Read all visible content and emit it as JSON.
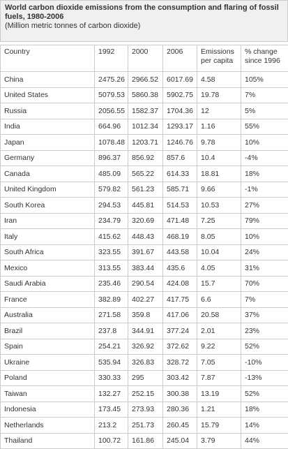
{
  "header": {
    "title": "World carbon dioxide emissions from the consumption and flaring of fossil fuels, 1980-2006",
    "subtitle": "(Million metric tonnes of carbon dioxide)"
  },
  "table": {
    "columns": [
      "Country",
      "1992",
      "2000",
      "2006",
      "Emissions per capita",
      "% change since 1996"
    ],
    "rows": [
      [
        "China",
        "2475.26",
        "2966.52",
        "6017.69",
        "4.58",
        "105%"
      ],
      [
        "United States",
        "5079.53",
        "5860.38",
        "5902.75",
        "19.78",
        "7%"
      ],
      [
        "Russia",
        "2056.55",
        "1582.37",
        "1704.36",
        "12",
        "5%"
      ],
      [
        "India",
        "664.96",
        "1012.34",
        "1293.17",
        "1.16",
        "55%"
      ],
      [
        "Japan",
        "1078.48",
        "1203.71",
        "1246.76",
        "9.78",
        "10%"
      ],
      [
        "Germany",
        "896.37",
        "856.92",
        "857.6",
        "10.4",
        "-4%"
      ],
      [
        "Canada",
        "485.09",
        "565.22",
        "614.33",
        "18.81",
        "18%"
      ],
      [
        "United Kingdom",
        "579.82",
        "561.23",
        "585.71",
        "9.66",
        "-1%"
      ],
      [
        "South Korea",
        "294.53",
        "445.81",
        "514.53",
        "10.53",
        "27%"
      ],
      [
        "Iran",
        "234.79",
        "320.69",
        "471.48",
        "7.25",
        "79%"
      ],
      [
        "Italy",
        "415.62",
        "448.43",
        "468.19",
        "8.05",
        "10%"
      ],
      [
        "South Africa",
        "323.55",
        "391.67",
        "443.58",
        "10.04",
        "24%"
      ],
      [
        "Mexico",
        "313.55",
        "383.44",
        "435.6",
        "4.05",
        "31%"
      ],
      [
        "Saudi Arabia",
        "235.46",
        "290.54",
        "424.08",
        "15.7",
        "70%"
      ],
      [
        "France",
        "382.89",
        "402.27",
        "417.75",
        "6.6",
        "7%"
      ],
      [
        "Australia",
        "271.58",
        "359.8",
        "417.06",
        "20.58",
        "37%"
      ],
      [
        "Brazil",
        "237.8",
        "344.91",
        "377.24",
        "2.01",
        "23%"
      ],
      [
        "Spain",
        "254.21",
        "326.92",
        "372.62",
        "9.22",
        "52%"
      ],
      [
        "Ukraine",
        "535.94",
        "326.83",
        "328.72",
        "7.05",
        "-10%"
      ],
      [
        "Poland",
        "330.33",
        "295",
        "303.42",
        "7.87",
        "-13%"
      ],
      [
        "Taiwan",
        "132.27",
        "252.15",
        "300.38",
        "13.19",
        "52%"
      ],
      [
        "Indonesia",
        "173.45",
        "273.93",
        "280.36",
        "1.21",
        "18%"
      ],
      [
        "Netherlands",
        "213.2",
        "251.73",
        "260.45",
        "15.79",
        "14%"
      ],
      [
        "Thailand",
        "100.72",
        "161.86",
        "245.04",
        "3.79",
        "44%"
      ]
    ]
  }
}
